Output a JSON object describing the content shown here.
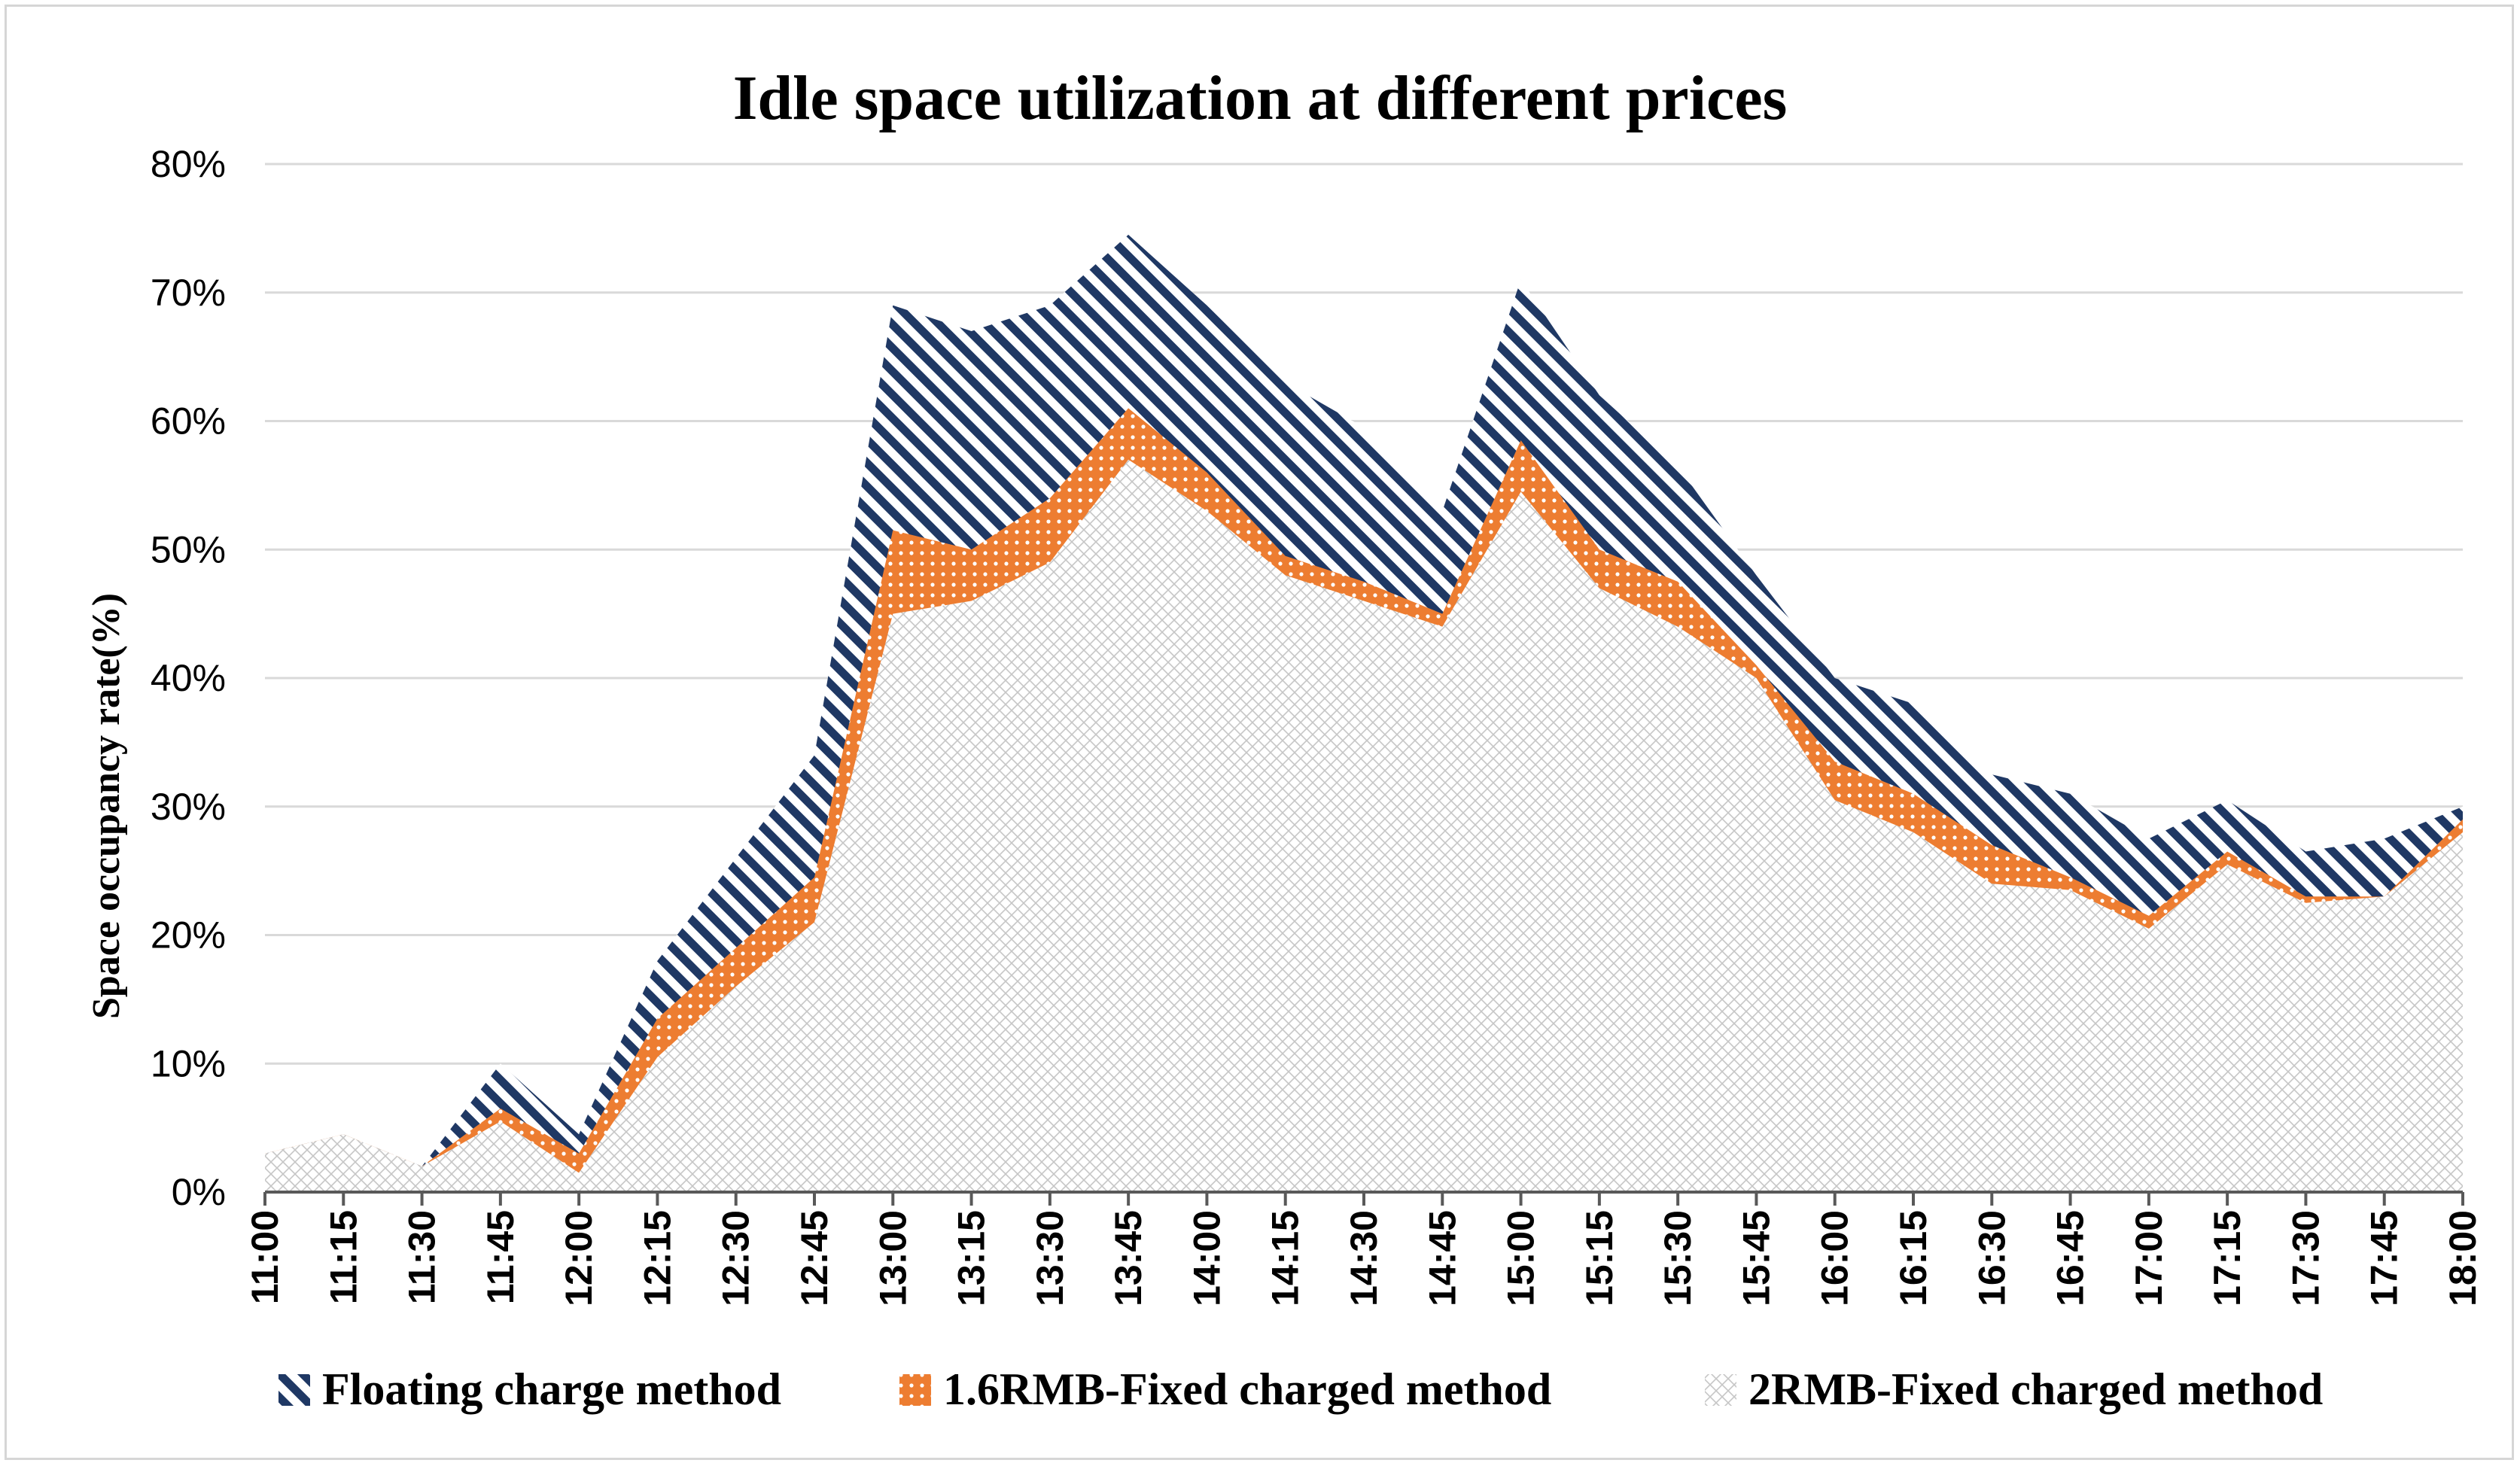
{
  "chart_data": {
    "type": "area",
    "title": "Idle space utilization at different prices",
    "xlabel": "",
    "ylabel": "Space occupancy rate(%)",
    "ylim": [
      0,
      80
    ],
    "yticks": [
      0,
      10,
      20,
      30,
      40,
      50,
      60,
      70,
      80
    ],
    "ytick_labels": [
      "0%",
      "10%",
      "20%",
      "30%",
      "40%",
      "50%",
      "60%",
      "70%",
      "80%"
    ],
    "grid": true,
    "legend_position": "bottom",
    "categories": [
      "11:00",
      "11:15",
      "11:30",
      "11:45",
      "12:00",
      "12:15",
      "12:30",
      "12:45",
      "13:00",
      "13:15",
      "13:30",
      "13:45",
      "14:00",
      "14:15",
      "14:30",
      "14:45",
      "15:00",
      "15:15",
      "15:30",
      "15:45",
      "16:00",
      "16:15",
      "16:30",
      "16:45",
      "17:00",
      "17:15",
      "17:30",
      "17:45",
      "18:00"
    ],
    "series": [
      {
        "name": "Floating charge method",
        "color": "#1f3864",
        "pattern": "diagonal-stripes",
        "values": [
          3,
          4.5,
          2,
          10,
          4.5,
          18,
          26,
          34,
          69,
          67,
          69,
          74.5,
          69,
          63,
          59.5,
          53,
          71,
          62,
          56.5,
          48,
          40,
          38,
          32.5,
          31,
          27.5,
          30.5,
          26.5,
          27.5,
          30
        ]
      },
      {
        "name": "1.6RMB-Fixed charged method",
        "color": "#ed7d31",
        "pattern": "dotted-grid",
        "values": [
          3,
          4.5,
          2,
          6.5,
          3,
          13.5,
          19,
          24.5,
          51.5,
          50,
          54,
          61,
          56,
          49.5,
          47.5,
          45,
          58.5,
          50,
          47.5,
          41,
          33.5,
          31,
          27,
          24.5,
          21.5,
          26.5,
          23,
          23,
          29
        ]
      },
      {
        "name": "2RMB-Fixed charged method",
        "color": "#bfbfbf",
        "pattern": "crosshatch",
        "values": [
          3,
          4.5,
          2,
          5.5,
          1.5,
          10.5,
          16,
          21,
          45,
          46,
          49,
          57,
          53,
          48,
          46,
          44,
          54.5,
          47,
          44,
          40,
          30.5,
          28,
          24,
          23.5,
          20.5,
          25.5,
          22.5,
          23,
          28
        ]
      }
    ]
  }
}
